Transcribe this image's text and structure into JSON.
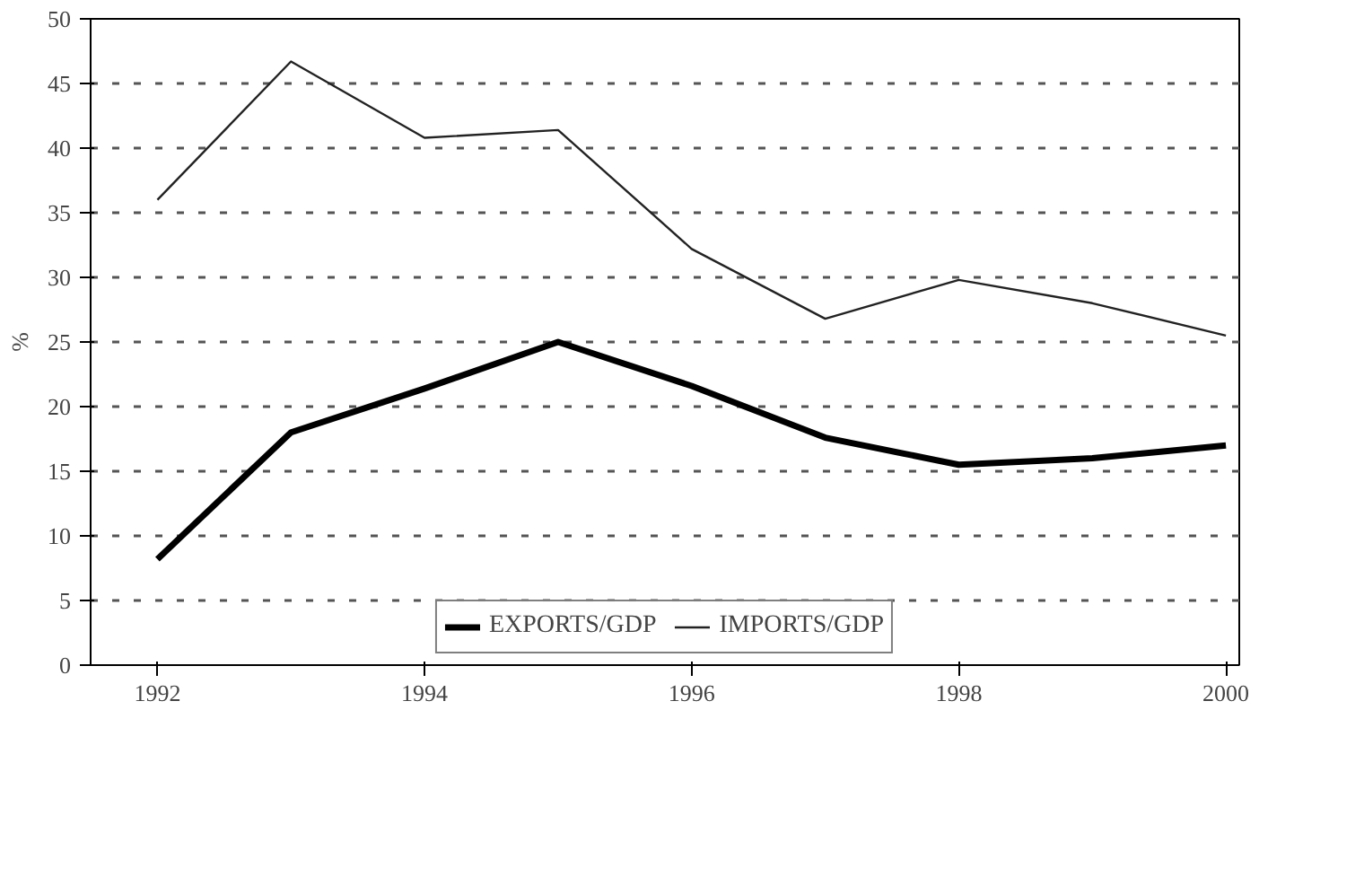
{
  "chart_data": {
    "type": "line",
    "ylabel": "%",
    "x": [
      1992,
      1993,
      1994,
      1995,
      1996,
      1997,
      1998,
      1999,
      2000
    ],
    "xlim": [
      1991.5,
      2000.1
    ],
    "xticks": [
      1992,
      1994,
      1996,
      1998,
      2000
    ],
    "ylim": [
      0,
      50
    ],
    "yticks": [
      0,
      5,
      10,
      15,
      20,
      25,
      30,
      35,
      40,
      45,
      50
    ],
    "grid": "y",
    "legend": "bottom",
    "marker": "none",
    "series": [
      {
        "name": "EXPORTS/GDP",
        "color": "#000000",
        "values": [
          8.2,
          18,
          21.4,
          25,
          21.6,
          17.6,
          15.5,
          16,
          17
        ]
      },
      {
        "name": "IMPORTS/GDP",
        "color": "#222222",
        "values": [
          36,
          46.7,
          40.8,
          41.4,
          32.2,
          26.8,
          29.8,
          28,
          25.5
        ]
      }
    ]
  }
}
